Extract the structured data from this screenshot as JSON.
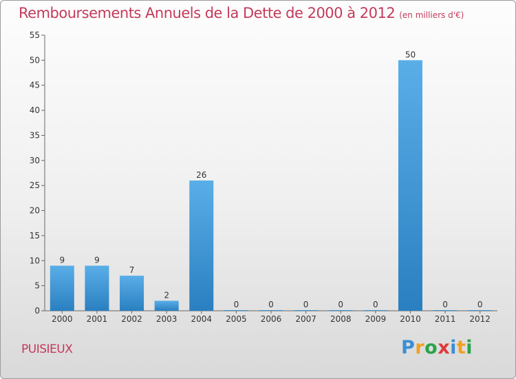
{
  "chart_data": {
    "type": "bar",
    "title": "Remboursements Annuels de la Dette de 2000 à 2012",
    "subtitle": "(en milliers d'€)",
    "categories": [
      "2000",
      "2001",
      "2002",
      "2003",
      "2004",
      "2005",
      "2006",
      "2007",
      "2008",
      "2009",
      "2010",
      "2011",
      "2012"
    ],
    "values": [
      9,
      9,
      7,
      2,
      26,
      0,
      0,
      0,
      0,
      0,
      50,
      0,
      0
    ],
    "ylim": [
      0,
      55
    ],
    "yticks": [
      0,
      5,
      10,
      15,
      20,
      25,
      30,
      35,
      40,
      45,
      50,
      55
    ],
    "xlabel": "",
    "ylabel": "",
    "grid": false,
    "bar_color_top": "#5aaee8",
    "bar_color_bottom": "#2a7fc0"
  },
  "footer": {
    "commune": "PUISIEUX",
    "logo_letters": [
      "P",
      "r",
      "o",
      "x",
      "i",
      "t",
      "i"
    ],
    "logo_colors": [
      "#3a8ed6",
      "#f0a020",
      "#2aa34a",
      "#e03a3a",
      "#3a8ed6",
      "#f0a020",
      "#2aa34a"
    ]
  }
}
